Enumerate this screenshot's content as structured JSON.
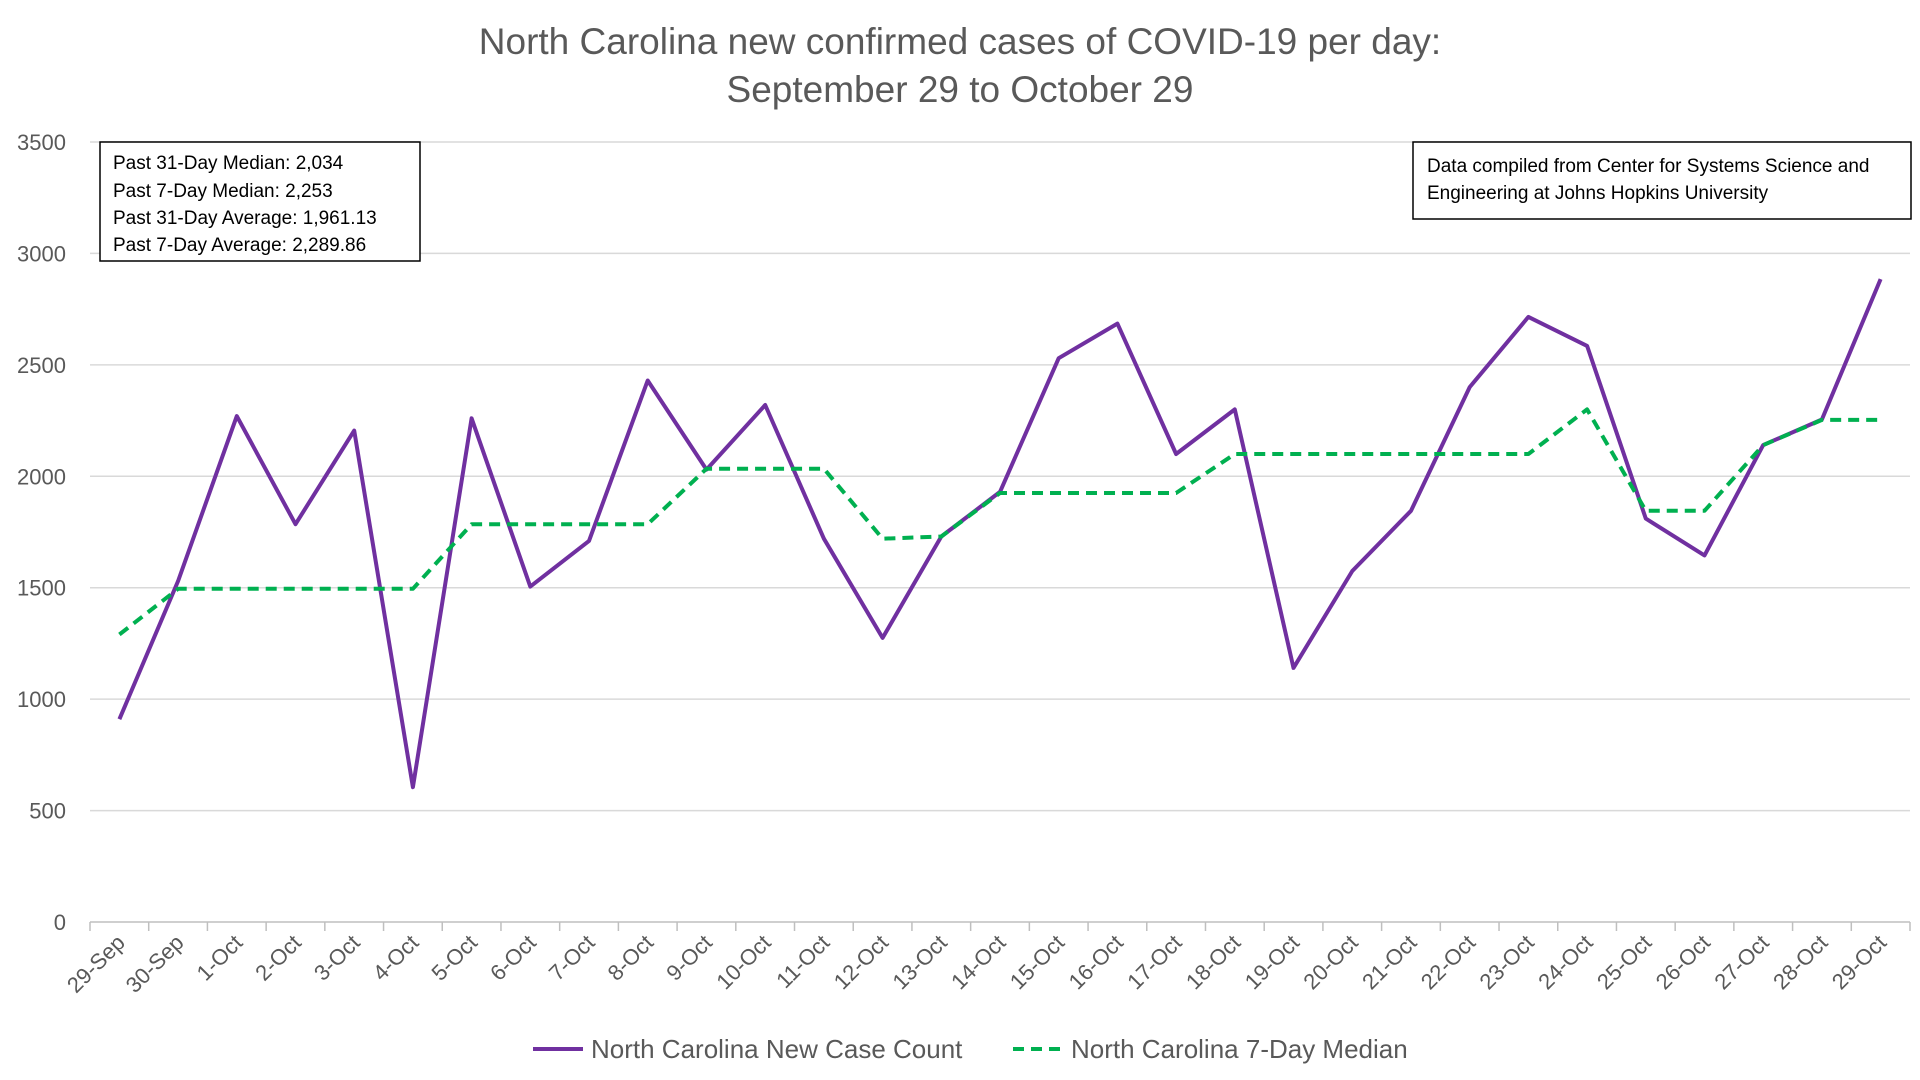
{
  "chart_data": {
    "type": "line",
    "title": [
      "North Carolina new confirmed cases of COVID-19 per day:",
      "September 29 to October 29"
    ],
    "categories": [
      "29-Sep",
      "30-Sep",
      "1-Oct",
      "2-Oct",
      "3-Oct",
      "4-Oct",
      "5-Oct",
      "6-Oct",
      "7-Oct",
      "8-Oct",
      "9-Oct",
      "10-Oct",
      "11-Oct",
      "12-Oct",
      "13-Oct",
      "14-Oct",
      "15-Oct",
      "16-Oct",
      "17-Oct",
      "18-Oct",
      "19-Oct",
      "20-Oct",
      "21-Oct",
      "22-Oct",
      "23-Oct",
      "24-Oct",
      "25-Oct",
      "26-Oct",
      "27-Oct",
      "28-Oct",
      "29-Oct"
    ],
    "series": [
      {
        "name": "North Carolina New Case Count",
        "color": "#7030a0",
        "style": "solid",
        "values": [
          910,
          1530,
          2270,
          1785,
          2205,
          605,
          2260,
          1505,
          1710,
          2430,
          2030,
          2320,
          1720,
          1275,
          1730,
          1930,
          2530,
          2685,
          2100,
          2300,
          1140,
          1575,
          1845,
          2400,
          2715,
          2585,
          1810,
          1645,
          2140,
          2255,
          2885
        ]
      },
      {
        "name": "North Carolina 7-Day Median",
        "color": "#00b050",
        "style": "dashed",
        "values": [
          1290,
          1495,
          1495,
          1495,
          1495,
          1495,
          1785,
          1785,
          1785,
          1785,
          2034,
          2034,
          2034,
          1720,
          1730,
          1925,
          1925,
          1925,
          1925,
          2100,
          2100,
          2100,
          2100,
          2100,
          2100,
          2300,
          1845,
          1845,
          2140,
          2253,
          2253
        ]
      }
    ],
    "ylim": [
      0,
      3500
    ],
    "yticks": [
      0,
      500,
      1000,
      1500,
      2000,
      2500,
      3000,
      3500
    ],
    "xlabel": "",
    "ylabel": "",
    "grid": true,
    "legend_position": "bottom-center",
    "stats_box": [
      "Past 31-Day Median: 2,034",
      "Past 7-Day Median: 2,253",
      "Past 31-Day Average: 1,961.13",
      "Past 7-Day Average: 2,289.86"
    ],
    "source_box": [
      "Data compiled from Center for Systems Science and",
      "Engineering at Johns Hopkins University"
    ]
  }
}
